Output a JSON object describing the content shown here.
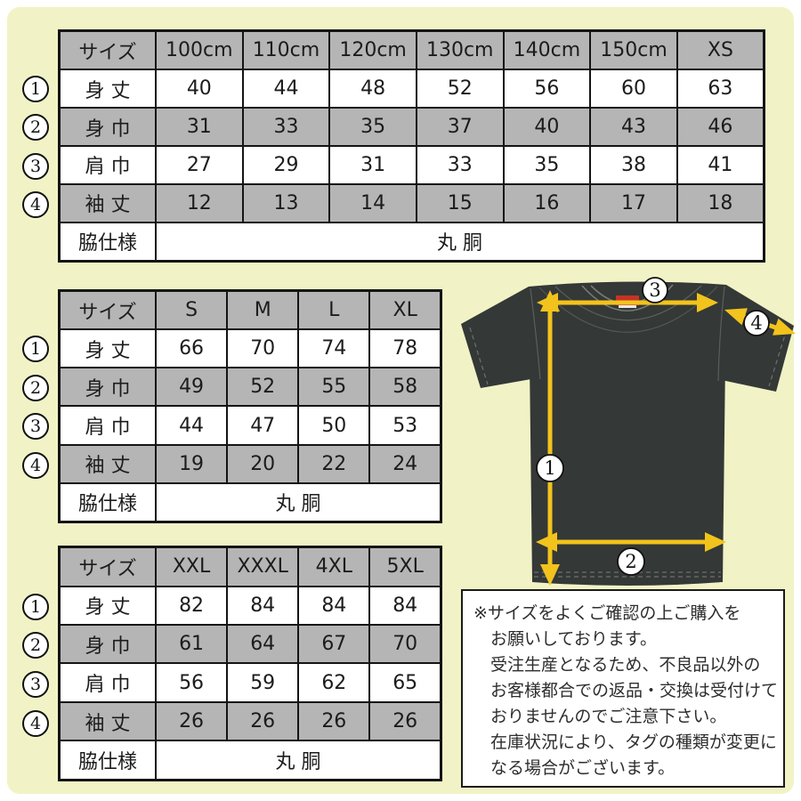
{
  "colors": {
    "background": "#f1f3c6",
    "table_header_gray": "#b5b5b5",
    "table_border": "#141414",
    "arrow_yellow": "#f2c31c",
    "shirt_dark": "#343836",
    "neck_tag_red": "#c53326"
  },
  "tables": [
    {
      "name": "kids",
      "header": [
        "サイズ",
        "100cm",
        "110cm",
        "120cm",
        "130cm",
        "140cm",
        "150cm",
        "XS"
      ],
      "rows": [
        {
          "num": "1",
          "label": "身 丈",
          "values": [
            "40",
            "44",
            "48",
            "52",
            "56",
            "60",
            "63"
          ]
        },
        {
          "num": "2",
          "label": "身 巾",
          "values": [
            "31",
            "33",
            "35",
            "37",
            "40",
            "43",
            "46"
          ]
        },
        {
          "num": "3",
          "label": "肩 巾",
          "values": [
            "27",
            "29",
            "31",
            "33",
            "35",
            "38",
            "41"
          ]
        },
        {
          "num": "4",
          "label": "袖 丈",
          "values": [
            "12",
            "13",
            "14",
            "15",
            "16",
            "17",
            "18"
          ]
        }
      ],
      "footer": {
        "label": "脇仕様",
        "value": "丸 胴"
      }
    },
    {
      "name": "adult",
      "header": [
        "サイズ",
        "S",
        "M",
        "L",
        "XL"
      ],
      "rows": [
        {
          "num": "1",
          "label": "身 丈",
          "values": [
            "66",
            "70",
            "74",
            "78"
          ]
        },
        {
          "num": "2",
          "label": "身 巾",
          "values": [
            "49",
            "52",
            "55",
            "58"
          ]
        },
        {
          "num": "3",
          "label": "肩 巾",
          "values": [
            "44",
            "47",
            "50",
            "53"
          ]
        },
        {
          "num": "4",
          "label": "袖 丈",
          "values": [
            "19",
            "20",
            "22",
            "24"
          ]
        }
      ],
      "footer": {
        "label": "脇仕様",
        "value": "丸 胴"
      }
    },
    {
      "name": "plus",
      "header": [
        "サイズ",
        "XXL",
        "XXXL",
        "4XL",
        "5XL"
      ],
      "rows": [
        {
          "num": "1",
          "label": "身 丈",
          "values": [
            "82",
            "84",
            "84",
            "84"
          ]
        },
        {
          "num": "2",
          "label": "身 巾",
          "values": [
            "61",
            "64",
            "67",
            "70"
          ]
        },
        {
          "num": "3",
          "label": "肩 巾",
          "values": [
            "56",
            "59",
            "62",
            "65"
          ]
        },
        {
          "num": "4",
          "label": "袖 丈",
          "values": [
            "26",
            "26",
            "26",
            "26"
          ]
        }
      ],
      "footer": {
        "label": "脇仕様",
        "value": "丸 胴"
      }
    }
  ],
  "diagram": {
    "markers": [
      "1",
      "2",
      "3",
      "4"
    ]
  },
  "note": {
    "lines": [
      "※サイズをよくご確認の上ご購入を",
      "お願いしております。",
      "受注生産となるため、不良品以外の",
      "お客様都合での返品・交換は受付けて",
      "おりませんのでご注意下さい。",
      "在庫状況により、タグの種類が変更に",
      "なる場合がございます。"
    ]
  }
}
